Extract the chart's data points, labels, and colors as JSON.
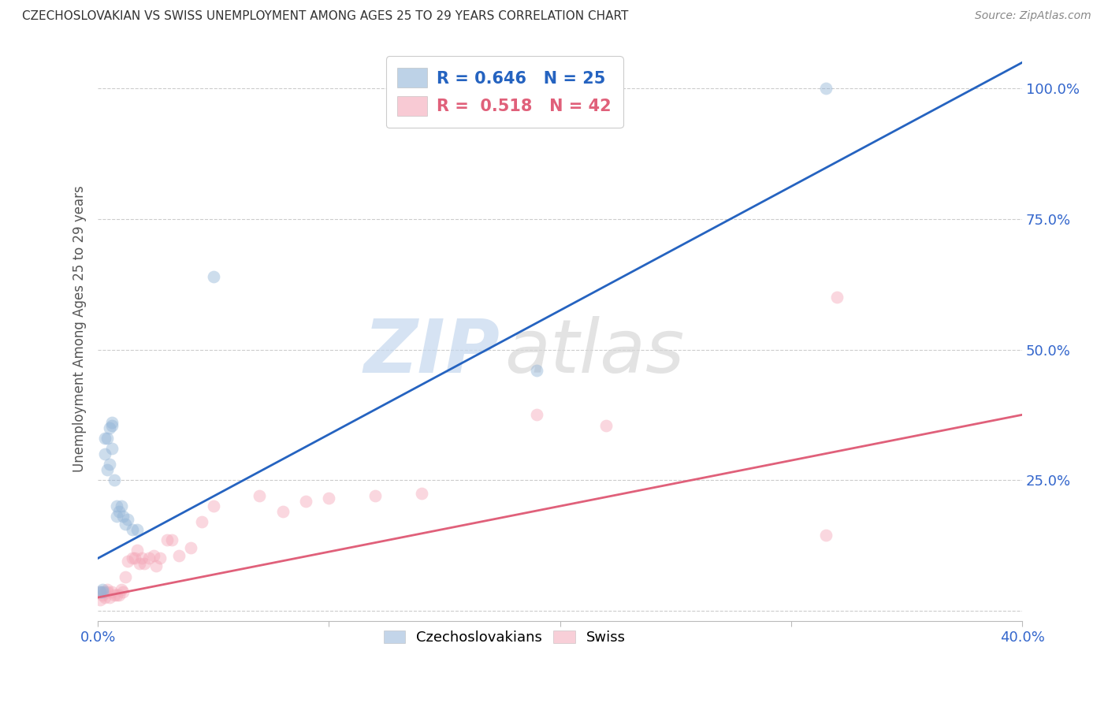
{
  "title": "CZECHOSLOVAKIAN VS SWISS UNEMPLOYMENT AMONG AGES 25 TO 29 YEARS CORRELATION CHART",
  "source": "Source: ZipAtlas.com",
  "ylabel": "Unemployment Among Ages 25 to 29 years",
  "ytick_labels": [
    "",
    "25.0%",
    "50.0%",
    "75.0%",
    "100.0%"
  ],
  "ytick_positions": [
    0,
    0.25,
    0.5,
    0.75,
    1.0
  ],
  "xlim": [
    0.0,
    0.4
  ],
  "ylim": [
    -0.02,
    1.1
  ],
  "watermark_zip": "ZIP",
  "watermark_atlas": "atlas",
  "legend_czech_r": "R = 0.646",
  "legend_czech_n": "N = 25",
  "legend_swiss_r": "R =  0.518",
  "legend_swiss_n": "N = 42",
  "czech_color": "#92B4D7",
  "swiss_color": "#F4A8B8",
  "czech_line_color": "#2563C0",
  "swiss_line_color": "#E0607A",
  "czech_scatter_x": [
    0.001,
    0.002,
    0.002,
    0.003,
    0.003,
    0.004,
    0.004,
    0.005,
    0.005,
    0.006,
    0.006,
    0.006,
    0.007,
    0.008,
    0.008,
    0.009,
    0.01,
    0.011,
    0.012,
    0.013,
    0.015,
    0.017,
    0.05,
    0.19,
    0.315
  ],
  "czech_scatter_y": [
    0.035,
    0.04,
    0.035,
    0.3,
    0.33,
    0.27,
    0.33,
    0.28,
    0.35,
    0.31,
    0.36,
    0.355,
    0.25,
    0.18,
    0.2,
    0.19,
    0.2,
    0.18,
    0.165,
    0.175,
    0.155,
    0.155,
    0.64,
    0.46,
    1.0
  ],
  "swiss_scatter_x": [
    0.001,
    0.001,
    0.002,
    0.003,
    0.003,
    0.004,
    0.004,
    0.005,
    0.006,
    0.007,
    0.008,
    0.009,
    0.01,
    0.011,
    0.012,
    0.013,
    0.015,
    0.016,
    0.017,
    0.018,
    0.019,
    0.02,
    0.022,
    0.024,
    0.025,
    0.027,
    0.03,
    0.032,
    0.035,
    0.04,
    0.045,
    0.05,
    0.07,
    0.08,
    0.09,
    0.1,
    0.12,
    0.14,
    0.19,
    0.22,
    0.315,
    0.32
  ],
  "swiss_scatter_y": [
    0.02,
    0.035,
    0.03,
    0.025,
    0.035,
    0.04,
    0.035,
    0.025,
    0.035,
    0.03,
    0.03,
    0.03,
    0.04,
    0.035,
    0.065,
    0.095,
    0.1,
    0.1,
    0.115,
    0.09,
    0.1,
    0.09,
    0.1,
    0.105,
    0.085,
    0.1,
    0.135,
    0.135,
    0.105,
    0.12,
    0.17,
    0.2,
    0.22,
    0.19,
    0.21,
    0.215,
    0.22,
    0.225,
    0.375,
    0.355,
    0.145,
    0.6
  ],
  "czech_line_x": [
    0.0,
    0.4
  ],
  "czech_line_y": [
    0.1,
    1.05
  ],
  "swiss_line_x": [
    0.0,
    0.4
  ],
  "swiss_line_y": [
    0.025,
    0.375
  ],
  "bg_color": "#FFFFFF",
  "grid_color": "#CCCCCC",
  "title_color": "#333333",
  "axis_label_color": "#555555",
  "tick_color": "#3366CC",
  "scatter_size": 130,
  "scatter_alpha": 0.45,
  "line_width": 2.0
}
